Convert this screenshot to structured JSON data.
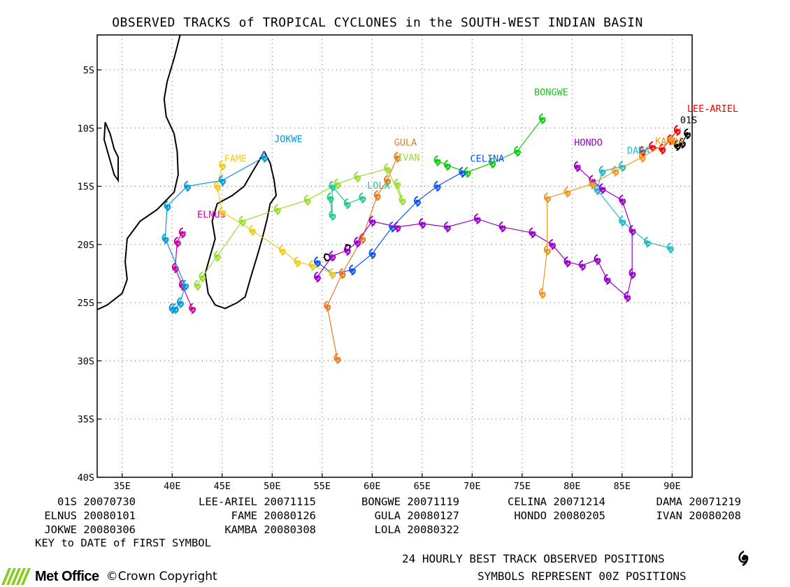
{
  "title": "OBSERVED TRACKS of TROPICAL CYCLONES in the SOUTH-WEST INDIAN BASIN",
  "icons": {
    "cyclone_symbol": "cyclone-symbol-icon",
    "logo": "met-office-logo-icon"
  },
  "map": {
    "lon_range": [
      32.5,
      92
    ],
    "lat_range": [
      -40,
      -2
    ],
    "lon_ticks": [
      "35E",
      "40E",
      "45E",
      "50E",
      "55E",
      "60E",
      "65E",
      "70E",
      "75E",
      "80E",
      "85E",
      "90E"
    ],
    "lat_ticks": [
      "5S",
      "10S",
      "15S",
      "20S",
      "25S",
      "30S",
      "35S",
      "40S"
    ]
  },
  "chart_data": {
    "type": "scatter",
    "title": "OBSERVED TRACKS of TROPICAL CYCLONES in the SOUTH-WEST INDIAN BASIN",
    "xlim": [
      32.5,
      92
    ],
    "ylim": [
      -40,
      -2
    ],
    "series": [
      {
        "name": "01S",
        "color": "#000000",
        "label_pos": [
          90.8,
          -9.6
        ],
        "points": [
          [
            91.5,
            -10.5
          ],
          [
            91.0,
            -11.3
          ],
          [
            90.5,
            -11.5
          ]
        ]
      },
      {
        "name": "LEE-ARIEL",
        "color": "#ff0000",
        "label_pos": [
          91.5,
          -8.6
        ],
        "points": [
          [
            90.5,
            -10.2
          ],
          [
            89.8,
            -11.0
          ],
          [
            89,
            -11.8
          ],
          [
            88,
            -11.6
          ],
          [
            87,
            -12.0
          ]
        ]
      },
      {
        "name": "BONGWE",
        "color": "#11cc11",
        "label_pos": [
          76.2,
          -7.2
        ],
        "points": [
          [
            77,
            -9.2
          ],
          [
            74.5,
            -12.0
          ],
          [
            72,
            -13.0
          ],
          [
            69.5,
            -13.8
          ],
          [
            67.5,
            -13.2
          ],
          [
            66.5,
            -12.8
          ]
        ]
      },
      {
        "name": "CELINA",
        "color": "#1155ee",
        "label_pos": [
          69.8,
          -12.9
        ],
        "points": [
          [
            69,
            -13.8
          ],
          [
            66.5,
            -15.0
          ],
          [
            64.5,
            -16.3
          ],
          [
            62,
            -18.5
          ],
          [
            60,
            -20.8
          ],
          [
            58,
            -22.2
          ],
          [
            56,
            -22.5
          ],
          [
            54.5,
            -21.5
          ]
        ]
      },
      {
        "name": "DAMA",
        "color": "#22bbcc",
        "label_pos": [
          85.5,
          -12.2
        ],
        "points": [
          [
            85,
            -13.3
          ],
          [
            83,
            -13.7
          ],
          [
            82.5,
            -15.3
          ],
          [
            85,
            -18.0
          ],
          [
            87.5,
            -19.8
          ],
          [
            89.8,
            -20.3
          ]
        ]
      },
      {
        "name": "ELNUS",
        "color": "#cc0099",
        "label_pos": [
          42.5,
          -17.7
        ],
        "points": [
          [
            41,
            -19.0
          ],
          [
            40.5,
            -19.8
          ],
          [
            40.3,
            -22.0
          ],
          [
            41,
            -23.5
          ],
          [
            42,
            -25.5
          ]
        ]
      },
      {
        "name": "FAME",
        "color": "#eecc22",
        "label_pos": [
          45.2,
          -12.9
        ],
        "points": [
          [
            45,
            -13.2
          ],
          [
            44.5,
            -15.0
          ],
          [
            45,
            -17.2
          ],
          [
            48,
            -18.8
          ],
          [
            51,
            -20.5
          ],
          [
            52.5,
            -21.5
          ],
          [
            54,
            -21.8
          ],
          [
            56,
            -22.5
          ]
        ]
      },
      {
        "name": "GULA",
        "color": "#ee7722",
        "label_pos": [
          62.2,
          -11.5
        ],
        "points": [
          [
            62.5,
            -12.5
          ],
          [
            61.5,
            -14.5
          ],
          [
            60.5,
            -15.8
          ],
          [
            59,
            -19.5
          ],
          [
            57,
            -22.5
          ],
          [
            55.5,
            -25.3
          ],
          [
            56.5,
            -29.8
          ]
        ]
      },
      {
        "name": "HONDO",
        "color": "#9900cc",
        "label_pos": [
          80.2,
          -11.5
        ],
        "points": [
          [
            80.5,
            -13.3
          ],
          [
            82,
            -14.5
          ],
          [
            83,
            -15.2
          ],
          [
            85,
            -16.2
          ],
          [
            86,
            -18.8
          ],
          [
            86,
            -22.5
          ],
          [
            85.5,
            -24.5
          ],
          [
            83.5,
            -23.0
          ],
          [
            82.5,
            -21.3
          ],
          [
            81,
            -21.8
          ],
          [
            79.5,
            -21.5
          ],
          [
            78,
            -20.0
          ],
          [
            76,
            -19.0
          ],
          [
            73,
            -18.5
          ],
          [
            70.5,
            -17.8
          ],
          [
            67.5,
            -18.5
          ],
          [
            65,
            -18.2
          ],
          [
            62.5,
            -18.5
          ],
          [
            60,
            -18.0
          ],
          [
            58.5,
            -19.8
          ],
          [
            57.5,
            -20.5
          ],
          [
            56,
            -21.0
          ],
          [
            54.5,
            -22.8
          ]
        ]
      },
      {
        "name": "IVAN",
        "color": "#99dd33",
        "label_pos": [
          62.5,
          -12.8
        ],
        "points": [
          [
            62.5,
            -14.8
          ],
          [
            63,
            -16.2
          ],
          [
            61.5,
            -13.5
          ],
          [
            58.5,
            -14.2
          ],
          [
            56.5,
            -14.8
          ],
          [
            53.5,
            -16.2
          ],
          [
            50.5,
            -17.0
          ],
          [
            47,
            -18.0
          ],
          [
            44.5,
            -21.0
          ],
          [
            43,
            -22.8
          ],
          [
            42.5,
            -23.5
          ]
        ]
      },
      {
        "name": "JOKWE",
        "color": "#0099dd",
        "label_pos": [
          50.2,
          -11.2
        ],
        "points": [
          [
            49.2,
            -12.5
          ],
          [
            45,
            -14.5
          ],
          [
            41.5,
            -15.0
          ],
          [
            39.5,
            -16.7
          ],
          [
            39.3,
            -19.5
          ],
          [
            41.3,
            -23.5
          ],
          [
            40.8,
            -25.0
          ],
          [
            40.3,
            -25.5
          ],
          [
            40,
            -25.5
          ]
        ]
      },
      {
        "name": "KAMBA",
        "color": "#ee9922",
        "label_pos": [
          88.3,
          -11.4
        ],
        "points": [
          [
            90,
            -11.0
          ],
          [
            87,
            -12.5
          ],
          [
            84.3,
            -13.7
          ],
          [
            82,
            -14.8
          ],
          [
            79.5,
            -15.5
          ],
          [
            77.5,
            -16.0
          ],
          [
            77.5,
            -20.5
          ],
          [
            77,
            -24.2
          ]
        ]
      },
      {
        "name": "LOLA",
        "color": "#22cc88",
        "label_pos": [
          59.5,
          -15.2
        ],
        "points": [
          [
            55.8,
            -16.0
          ],
          [
            56,
            -17.5
          ],
          [
            56,
            -15.0
          ],
          [
            57.5,
            -16.5
          ],
          [
            59,
            -16.0
          ]
        ]
      }
    ]
  },
  "key": {
    "rows": [
      [
        {
          "name": "01S",
          "date": "20070730"
        },
        {
          "name": "LEE-ARIEL",
          "date": "20071115"
        },
        {
          "name": "BONGWE",
          "date": "20071119"
        },
        {
          "name": "CELINA",
          "date": "20071214"
        },
        {
          "name": "DAMA",
          "date": "20071219"
        }
      ],
      [
        {
          "name": "ELNUS",
          "date": "20080101"
        },
        {
          "name": "FAME",
          "date": "20080126"
        },
        {
          "name": "GULA",
          "date": "20080127"
        },
        {
          "name": "HONDO",
          "date": "20080205"
        },
        {
          "name": "IVAN",
          "date": "20080208"
        }
      ],
      [
        {
          "name": "JOKWE",
          "date": "20080306"
        },
        {
          "name": "KAMBA",
          "date": "20080308"
        },
        {
          "name": "LOLA",
          "date": "20080322"
        }
      ]
    ],
    "note": "KEY to DATE of FIRST SYMBOL"
  },
  "footer": {
    "line1": "24 HOURLY BEST TRACK OBSERVED POSITIONS",
    "line2": "SYMBOLS REPRESENT 00Z POSITIONS",
    "logo_text": "Met Office",
    "copyright": "©Crown Copyright"
  }
}
